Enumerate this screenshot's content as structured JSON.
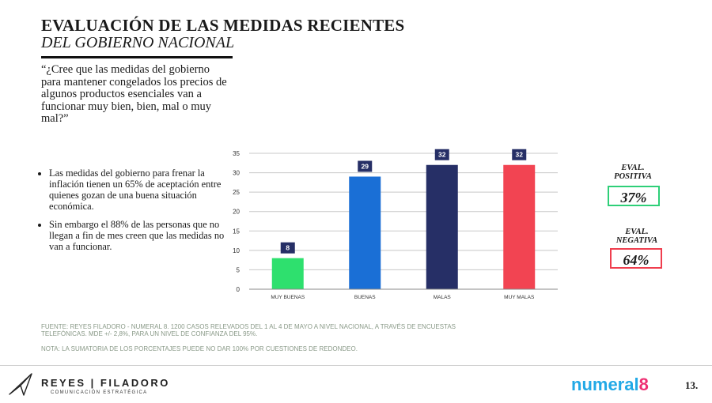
{
  "header": {
    "title": "EVALUACIÓN DE LAS MEDIDAS RECIENTES",
    "subtitle": "DEL GOBIERNO NACIONAL"
  },
  "question": "“¿Cree que las medidas del gobierno para mantener congelados los precios de algunos productos esenciales van a funcionar muy bien, bien, mal o muy mal?”",
  "bullets": [
    "Las medidas del gobierno para frenar la inflación tienen un 65% de aceptación entre quienes gozan de una buena situación económica.",
    "Sin embargo el 88% de las personas que no llegan a fin de mes creen que las medidas no van a funcionar."
  ],
  "chart_data": {
    "type": "bar",
    "categories": [
      "MUY BUENAS",
      "BUENAS",
      "MALAS",
      "MUY MALAS"
    ],
    "values": [
      8,
      29,
      32,
      32
    ],
    "colors": [
      "#2ee06e",
      "#1a6fd6",
      "#262f66",
      "#f24452"
    ],
    "ylim": [
      0,
      35
    ],
    "yticks": [
      0,
      5,
      10,
      15,
      20,
      25,
      30,
      35
    ],
    "grid": true,
    "data_labels": true,
    "label_box_color": "#262f66"
  },
  "eval": {
    "positiva": {
      "label1": "EVAL.",
      "label2": "POSITIVA",
      "value": "37%",
      "color": "#2ecf78"
    },
    "negativa": {
      "label1": "EVAL.",
      "label2": "NEGATIVA",
      "value": "64%",
      "color": "#ef3e4e"
    }
  },
  "footer": {
    "source": "FUENTE: REYES FILADORO - NUMERAL 8. 1200 CASOS RELEVADOS DEL 1 AL 4 DE MAYO A NIVEL NACIONAL, A TRAVÉS DE ENCUESTAS TELEFÓNICAS. MDE +/- 2,8%, PARA UN NIVEL DE CONFIANZA DEL 95%.",
    "note": "NOTA: LA SUMATORIA DE LOS PORCENTAJES PUEDE NO DAR 100% POR CUESTIONES DE REDONDEO."
  },
  "brand": {
    "left_name": "REYES | FILADORO",
    "left_tagline": "COMUNICACIÓN ESTRATÉGICA",
    "right_part1": "numeral",
    "right_part2": "8",
    "right_color1": "#22a9e6",
    "right_color2": "#ee2f72",
    "icon": "paper-plane-icon"
  },
  "page": {
    "number": "13."
  }
}
